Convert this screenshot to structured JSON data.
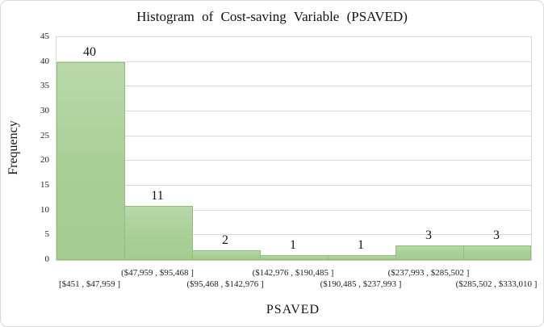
{
  "chart_data": {
    "type": "bar",
    "subtype": "histogram",
    "title": "Histogram  of Cost-saving  Variable  (PSAVED)",
    "xlabel": "PSAVED",
    "ylabel": "Frequency",
    "categories": [
      "[$451 , $47,959 ]",
      "($47,959 , $95,468 ]",
      "($95,468 , $142,976 ]",
      "($142,976 , $190,485 ]",
      "($190,485 , $237,993 ]",
      "($237,993 , $285,502 ]",
      "($285,502 , $333,010 ]"
    ],
    "values": [
      40,
      11,
      2,
      1,
      1,
      3,
      3
    ],
    "data_labels": [
      "40",
      "11",
      "2",
      "1",
      "1",
      "3",
      "3"
    ],
    "ylim": [
      0,
      45
    ],
    "yticks": [
      0,
      5,
      10,
      15,
      20,
      25,
      30,
      35,
      40,
      45
    ],
    "grid": "horizontal",
    "legend": "none",
    "gap_width_percent": 0,
    "x_label_layout": "staggered-two-rows"
  },
  "colors": {
    "bar_fill_top": "#b9d8aa",
    "bar_fill_bottom": "#a4cc91",
    "bar_border": "#90bf74",
    "gridline": "#d9d9d9",
    "plot_border": "#d9d9d9",
    "outer_border": "#d8d8d8",
    "background": "#ffffff",
    "text": "#111111"
  }
}
